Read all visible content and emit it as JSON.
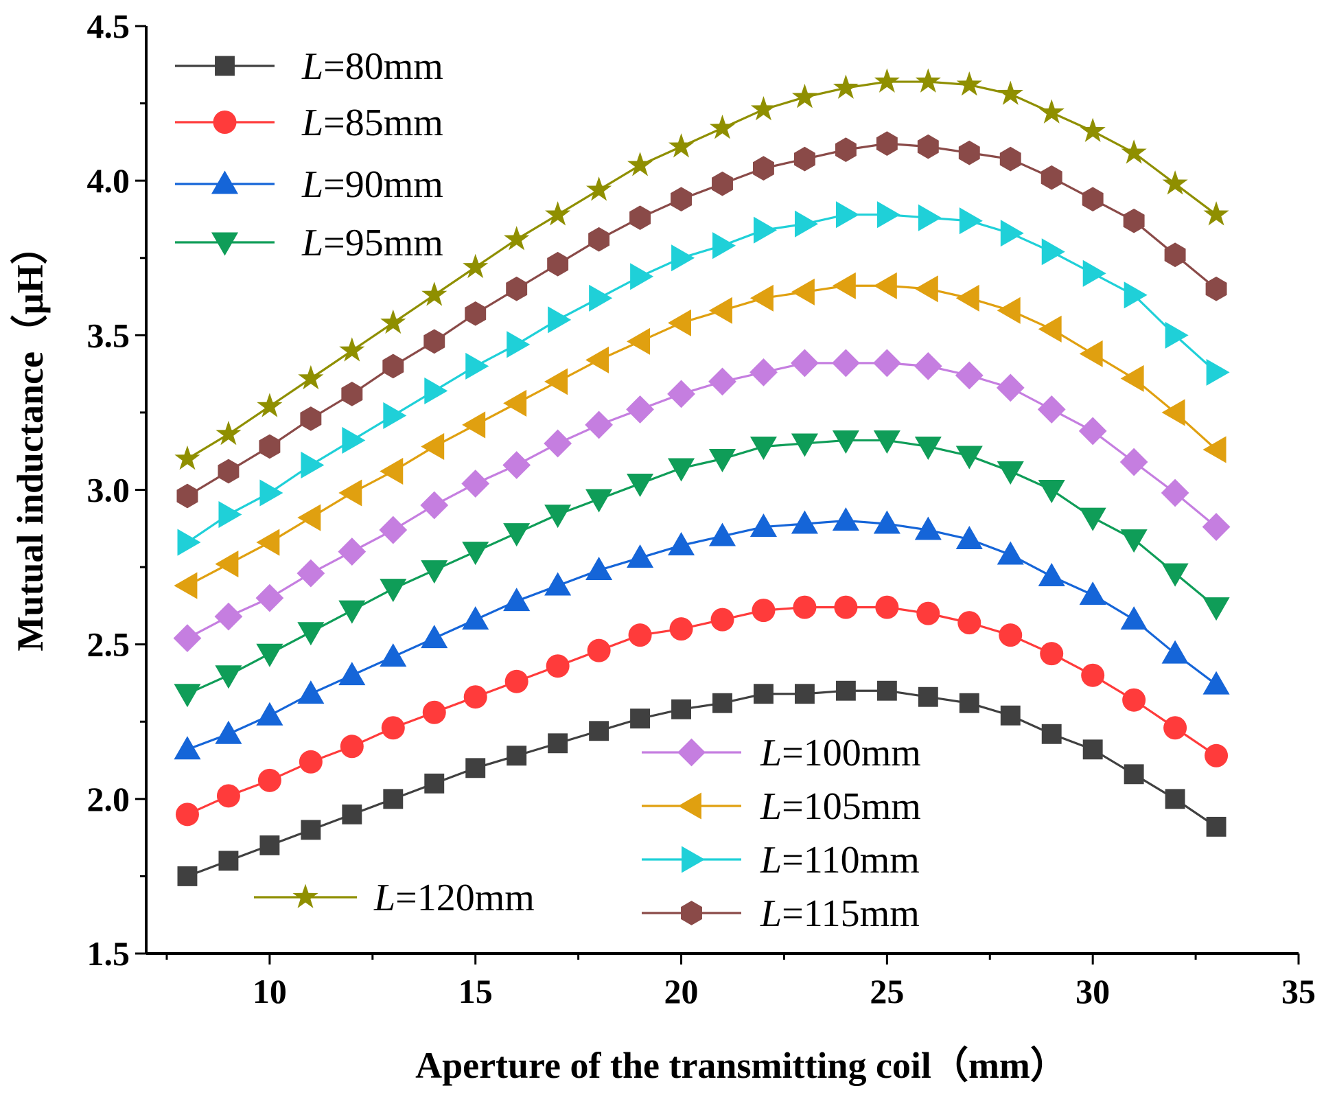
{
  "chart_data": {
    "type": "line",
    "title": "",
    "xlabel": "Aperture of the transmitting coil（mm）",
    "ylabel": "Mutual inductance（μH）",
    "xlim": [
      7,
      35
    ],
    "ylim": [
      1.5,
      4.5
    ],
    "xticks": [
      "10",
      "15",
      "20",
      "25",
      "30",
      "35"
    ],
    "yticks": [
      "1.5",
      "2.0",
      "2.5",
      "3.0",
      "3.5",
      "4.0",
      "4.5"
    ],
    "grid": false,
    "x": [
      8,
      9,
      10,
      11,
      12,
      13,
      14,
      15,
      16,
      17,
      18,
      19,
      20,
      21,
      22,
      23,
      24,
      25,
      26,
      27,
      28,
      29,
      30,
      31,
      32,
      33
    ],
    "series": [
      {
        "name": "L=80mm",
        "prefix": "L",
        "suffix": "=80mm",
        "color": "#404040",
        "marker": "square",
        "values": [
          1.75,
          1.8,
          1.85,
          1.9,
          1.95,
          2.0,
          2.05,
          2.1,
          2.14,
          2.18,
          2.22,
          2.26,
          2.29,
          2.31,
          2.34,
          2.34,
          2.35,
          2.35,
          2.33,
          2.31,
          2.27,
          2.21,
          2.16,
          2.08,
          2.0,
          1.91
        ]
      },
      {
        "name": "L=85mm",
        "prefix": "L",
        "suffix": "=85mm",
        "color": "#ff3b3b",
        "marker": "circle",
        "values": [
          1.95,
          2.01,
          2.06,
          2.12,
          2.17,
          2.23,
          2.28,
          2.33,
          2.38,
          2.43,
          2.48,
          2.53,
          2.55,
          2.58,
          2.61,
          2.62,
          2.62,
          2.62,
          2.6,
          2.57,
          2.53,
          2.47,
          2.4,
          2.32,
          2.23,
          2.14
        ]
      },
      {
        "name": "L=90mm",
        "prefix": "L",
        "suffix": "=90mm",
        "color": "#1565d8",
        "marker": "triangle-up",
        "values": [
          2.16,
          2.21,
          2.27,
          2.34,
          2.4,
          2.46,
          2.52,
          2.58,
          2.64,
          2.69,
          2.74,
          2.78,
          2.82,
          2.85,
          2.88,
          2.89,
          2.9,
          2.89,
          2.87,
          2.84,
          2.79,
          2.72,
          2.66,
          2.58,
          2.47,
          2.37
        ]
      },
      {
        "name": "L=95mm",
        "prefix": "L",
        "suffix": "=95mm",
        "color": "#0f9d58",
        "marker": "triangle-down",
        "values": [
          2.34,
          2.4,
          2.47,
          2.54,
          2.61,
          2.68,
          2.74,
          2.8,
          2.86,
          2.92,
          2.97,
          3.02,
          3.07,
          3.1,
          3.14,
          3.15,
          3.16,
          3.16,
          3.14,
          3.11,
          3.06,
          3.0,
          2.91,
          2.84,
          2.73,
          2.62
        ]
      },
      {
        "name": "L=100mm",
        "prefix": "L",
        "suffix": "=100mm",
        "color": "#c57ee0",
        "marker": "diamond",
        "values": [
          2.52,
          2.59,
          2.65,
          2.73,
          2.8,
          2.87,
          2.95,
          3.02,
          3.08,
          3.15,
          3.21,
          3.26,
          3.31,
          3.35,
          3.38,
          3.41,
          3.41,
          3.41,
          3.4,
          3.37,
          3.33,
          3.26,
          3.19,
          3.09,
          2.99,
          2.88
        ]
      },
      {
        "name": "L=105mm",
        "prefix": "L",
        "suffix": "=105mm",
        "color": "#e0a010",
        "marker": "triangle-left",
        "values": [
          2.69,
          2.76,
          2.83,
          2.91,
          2.99,
          3.06,
          3.14,
          3.21,
          3.28,
          3.35,
          3.42,
          3.48,
          3.54,
          3.58,
          3.62,
          3.64,
          3.66,
          3.66,
          3.65,
          3.62,
          3.58,
          3.52,
          3.44,
          3.36,
          3.25,
          3.13
        ]
      },
      {
        "name": "L=110mm",
        "prefix": "L",
        "suffix": "=110mm",
        "color": "#1fd0d8",
        "marker": "triangle-right",
        "values": [
          2.83,
          2.92,
          2.99,
          3.08,
          3.16,
          3.24,
          3.32,
          3.4,
          3.47,
          3.55,
          3.62,
          3.69,
          3.75,
          3.79,
          3.84,
          3.86,
          3.89,
          3.89,
          3.88,
          3.87,
          3.83,
          3.77,
          3.7,
          3.63,
          3.5,
          3.38
        ]
      },
      {
        "name": "L=115mm",
        "prefix": "L",
        "suffix": "=115mm",
        "color": "#8a4a48",
        "marker": "hexagon",
        "values": [
          2.98,
          3.06,
          3.14,
          3.23,
          3.31,
          3.4,
          3.48,
          3.57,
          3.65,
          3.73,
          3.81,
          3.88,
          3.94,
          3.99,
          4.04,
          4.07,
          4.1,
          4.12,
          4.11,
          4.09,
          4.07,
          4.01,
          3.94,
          3.87,
          3.76,
          3.65
        ]
      },
      {
        "name": "L=120mm",
        "prefix": "L",
        "suffix": "=120mm",
        "color": "#8f8f00",
        "marker": "star",
        "values": [
          3.1,
          3.18,
          3.27,
          3.36,
          3.45,
          3.54,
          3.63,
          3.72,
          3.81,
          3.89,
          3.97,
          4.05,
          4.11,
          4.17,
          4.23,
          4.27,
          4.3,
          4.32,
          4.32,
          4.31,
          4.28,
          4.22,
          4.16,
          4.09,
          3.99,
          3.89
        ]
      }
    ],
    "legend": "three groups: top-left (80–95mm), bottom-right (100–115mm), bottom-left (120mm)"
  }
}
